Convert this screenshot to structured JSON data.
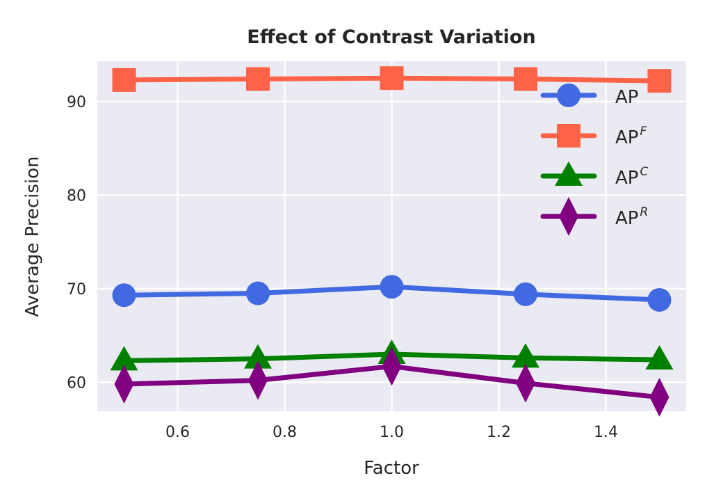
{
  "chart_data": {
    "type": "line",
    "title": "Effect of Contrast Variation",
    "xlabel": "Factor",
    "ylabel": "Average Precision",
    "x": [
      0.5,
      0.75,
      1.0,
      1.25,
      1.5
    ],
    "xlim": [
      0.45,
      1.55
    ],
    "ylim": [
      56.9,
      94.3
    ],
    "xticks": [
      0.6,
      0.8,
      1.0,
      1.2,
      1.4
    ],
    "xtick_labels": [
      "0.6",
      "0.8",
      "1.0",
      "1.2",
      "1.4"
    ],
    "yticks": [
      60,
      70,
      80,
      90
    ],
    "ytick_labels": [
      "60",
      "70",
      "80",
      "90"
    ],
    "grid": true,
    "legend_position": "top-right",
    "series": [
      {
        "name": "AP",
        "base": "AP",
        "sup": "",
        "marker": "circle",
        "color": "#4169E1",
        "values": [
          69.3,
          69.5,
          70.2,
          69.4,
          68.8
        ]
      },
      {
        "name": "AP^F",
        "base": "AP",
        "sup": "F",
        "marker": "square",
        "color": "#FF6347",
        "values": [
          92.3,
          92.4,
          92.5,
          92.4,
          92.2
        ]
      },
      {
        "name": "AP^C",
        "base": "AP",
        "sup": "C",
        "marker": "triangle",
        "color": "#008000",
        "values": [
          62.3,
          62.5,
          63.0,
          62.6,
          62.4
        ]
      },
      {
        "name": "AP^R",
        "base": "AP",
        "sup": "R",
        "marker": "diamond",
        "color": "#800080",
        "values": [
          59.8,
          60.2,
          61.7,
          59.9,
          58.4
        ]
      }
    ]
  }
}
